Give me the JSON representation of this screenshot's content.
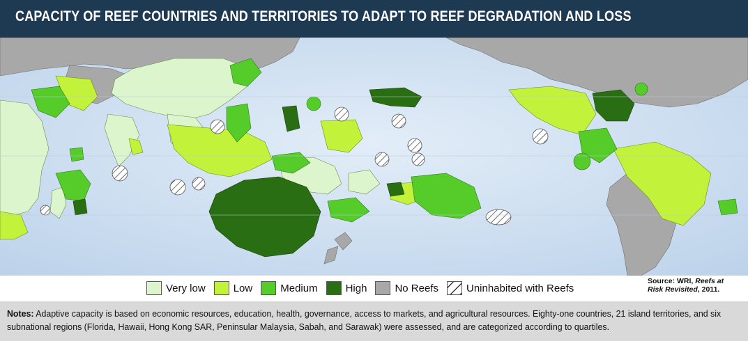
{
  "title": "CAPACITY OF REEF COUNTRIES AND TERRITORIES TO ADAPT TO REEF DEGRADATION AND LOSS",
  "legend": [
    {
      "label": "Very low",
      "color": "#dcf5cc",
      "icon": "swatch-very-low"
    },
    {
      "label": "Low",
      "color": "#c3f23a",
      "icon": "swatch-low"
    },
    {
      "label": "Medium",
      "color": "#55cc2a",
      "icon": "swatch-medium"
    },
    {
      "label": "High",
      "color": "#2a6e14",
      "icon": "swatch-high"
    },
    {
      "label": "No Reefs",
      "color": "#a8a8a8",
      "icon": "swatch-no-reefs"
    },
    {
      "label": "Uninhabited with Reefs",
      "color": "hatched",
      "icon": "swatch-uninhabited"
    }
  ],
  "source": {
    "prefix": "Source: WRI, ",
    "work": "Reefs at Risk Revisited",
    "suffix": ", 2011."
  },
  "notes": {
    "label": "Notes:",
    "text": " Adaptive capacity is based on economic resources, education, health, governance, access to markets, and agricultural resources. Eighty-one countries, 21 island territories, and six subnational regions (Florida, Hawaii, Hong Kong SAR, Peninsular Malaysia, Sabah, and Sarawak) were assessed, and are categorized according to quartiles."
  },
  "colors": {
    "ocean": "#cfdff0",
    "header": "#1e3a52",
    "notes_bg": "#d9d9d9"
  }
}
